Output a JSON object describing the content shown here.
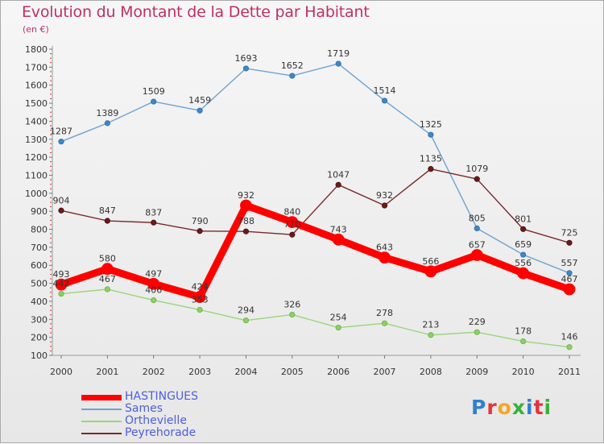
{
  "header": {
    "title": "Evolution du Montant de la Dette par Habitant",
    "subtitle": "(en €)"
  },
  "logo": {
    "text": "Proxiti"
  },
  "chart_data": {
    "type": "line",
    "title": "Evolution du Montant de la Dette par Habitant",
    "ylabel": "(en €)",
    "xlabel": "",
    "ylim": [
      100,
      1800
    ],
    "yticks": [
      100,
      200,
      300,
      400,
      500,
      600,
      700,
      800,
      900,
      1000,
      1100,
      1200,
      1300,
      1400,
      1500,
      1600,
      1700,
      1800
    ],
    "categories": [
      "2000",
      "2001",
      "2002",
      "2003",
      "2004",
      "2005",
      "2006",
      "2007",
      "2008",
      "2009",
      "2010",
      "2011"
    ],
    "grid": false,
    "legend_position": "bottom-left",
    "series": [
      {
        "name": "HASTINGUES",
        "color": "#ff0000",
        "values": [
          493,
          580,
          497,
          424,
          932,
          840,
          743,
          643,
          566,
          657,
          556,
          467
        ]
      },
      {
        "name": "Sames",
        "color": "#6fa3cf",
        "values": [
          1287,
          1389,
          1509,
          1459,
          1693,
          1652,
          1719,
          1514,
          1325,
          805,
          659,
          557
        ]
      },
      {
        "name": "Orthevielle",
        "color": "#99d67a",
        "values": [
          442,
          467,
          406,
          353,
          294,
          326,
          254,
          278,
          213,
          229,
          178,
          146
        ]
      },
      {
        "name": "Peyrehorade",
        "color": "#7a2a2a",
        "values": [
          904,
          847,
          837,
          790,
          788,
          770,
          1047,
          932,
          1135,
          1079,
          801,
          725
        ]
      }
    ]
  }
}
